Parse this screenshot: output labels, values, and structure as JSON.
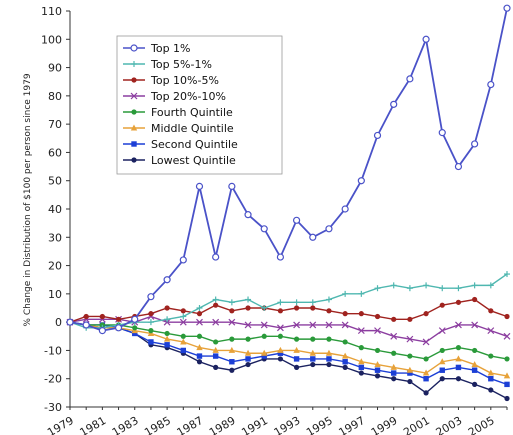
{
  "chart_data": {
    "type": "line",
    "title": "",
    "xlabel": "",
    "ylabel": "% Change in Distribution of $100 per person since 1979",
    "ylim": [
      -30,
      110
    ],
    "y_ticks": [
      -30,
      -20,
      -10,
      0,
      10,
      20,
      30,
      40,
      50,
      60,
      70,
      80,
      90,
      100,
      110
    ],
    "x_tick_labels": [
      "1979",
      "1981",
      "1983",
      "1985",
      "1987",
      "1989",
      "1991",
      "1993",
      "1995",
      "1997",
      "1999",
      "2001",
      "2003",
      "2005"
    ],
    "x": [
      1979,
      1980,
      1981,
      1982,
      1983,
      1984,
      1985,
      1986,
      1987,
      1988,
      1989,
      1990,
      1991,
      1992,
      1993,
      1994,
      1995,
      1996,
      1997,
      1998,
      1999,
      2000,
      2001,
      2002,
      2003,
      2004,
      2005,
      2006
    ],
    "grid": false,
    "legend_position": "top-left",
    "series": [
      {
        "name": "Top 1%",
        "color": "#4a52c8",
        "marker": "open-circle",
        "values": [
          0,
          -1,
          -3,
          -2,
          1,
          9,
          15,
          22,
          48,
          23,
          48,
          38,
          33,
          23,
          36,
          30,
          33,
          40,
          50,
          66,
          77,
          86,
          100,
          67,
          55,
          63,
          84,
          111
        ]
      },
      {
        "name": "Top 5%-1%",
        "color": "#4fb7b0",
        "marker": "plus",
        "values": [
          0,
          -2,
          -2,
          -1,
          0,
          0,
          1,
          2,
          5,
          8,
          7,
          8,
          5,
          7,
          7,
          7,
          8,
          10,
          10,
          12,
          13,
          12,
          13,
          12,
          12,
          13,
          13,
          17
        ]
      },
      {
        "name": "Top 10%-5%",
        "color": "#a0231f",
        "marker": "dot",
        "values": [
          0,
          2,
          2,
          1,
          2,
          3,
          5,
          4,
          3,
          6,
          4,
          5,
          5,
          4,
          5,
          5,
          4,
          3,
          3,
          2,
          1,
          1,
          3,
          6,
          7,
          8,
          4,
          2
        ]
      },
      {
        "name": "Top 20%-10%",
        "color": "#8c3ea0",
        "marker": "x",
        "values": [
          0,
          1,
          1,
          1,
          0,
          2,
          0,
          0,
          0,
          0,
          0,
          -1,
          -1,
          -2,
          -1,
          -1,
          -1,
          -1,
          -3,
          -3,
          -5,
          -6,
          -7,
          -3,
          -1,
          -1,
          -3,
          -5
        ]
      },
      {
        "name": "Fourth Quintile",
        "color": "#2a9a3a",
        "marker": "dot",
        "values": [
          0,
          -1,
          -1,
          -1,
          -2,
          -3,
          -4,
          -5,
          -5,
          -7,
          -6,
          -6,
          -5,
          -5,
          -6,
          -6,
          -6,
          -7,
          -9,
          -10,
          -11,
          -12,
          -13,
          -10,
          -9,
          -10,
          -12,
          -13
        ]
      },
      {
        "name": "Middle Quintile",
        "color": "#e7a23a",
        "marker": "triangle",
        "values": [
          0,
          -1,
          -2,
          -2,
          -3,
          -4,
          -6,
          -7,
          -9,
          -10,
          -10,
          -11,
          -11,
          -10,
          -10,
          -11,
          -11,
          -12,
          -14,
          -15,
          -16,
          -17,
          -18,
          -14,
          -13,
          -15,
          -18,
          -19
        ]
      },
      {
        "name": "Second Quintile",
        "color": "#1c3fd6",
        "marker": "square",
        "values": [
          0,
          -1,
          -1,
          -2,
          -4,
          -7,
          -8,
          -10,
          -12,
          -12,
          -14,
          -13,
          -12,
          -11,
          -13,
          -13,
          -13,
          -14,
          -16,
          -17,
          -18,
          -18,
          -20,
          -17,
          -16,
          -17,
          -20,
          -22
        ]
      },
      {
        "name": "Lowest Quintile",
        "color": "#1b2260",
        "marker": "dot",
        "values": [
          0,
          -1,
          -2,
          -2,
          -4,
          -8,
          -9,
          -11,
          -14,
          -16,
          -17,
          -15,
          -13,
          -13,
          -16,
          -15,
          -15,
          -16,
          -18,
          -19,
          -20,
          -21,
          -25,
          -20,
          -20,
          -22,
          -24,
          -27
        ]
      }
    ]
  }
}
